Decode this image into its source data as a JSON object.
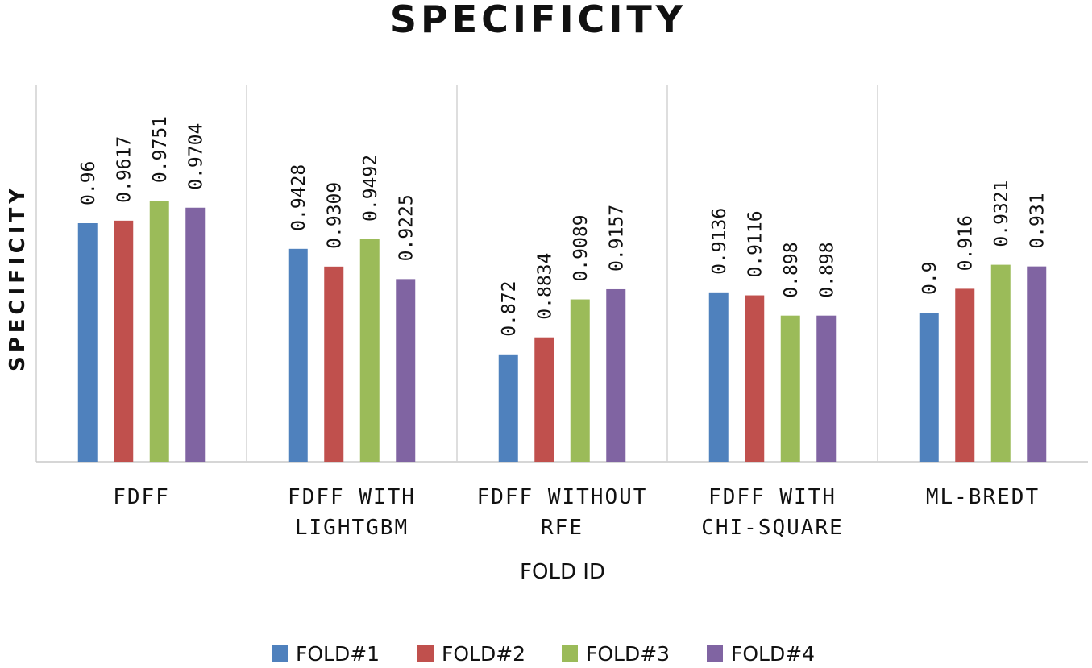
{
  "chart_data": {
    "type": "bar",
    "title": "SPECIFICITY",
    "ylabel": "SPECIFICITY",
    "xlabel": "FOLD ID",
    "categories": [
      [
        "FDFF"
      ],
      [
        "FDFF WITH",
        "LIGHTGBM"
      ],
      [
        "FDFF WITHOUT",
        "RFE"
      ],
      [
        "FDFF WITH",
        "CHI-SQUARE"
      ],
      [
        "ML-BREDT"
      ]
    ],
    "series": [
      {
        "name": "FOLD#1",
        "color": "#4F81BD",
        "values": [
          0.96,
          0.9428,
          0.872,
          0.9136,
          0.9
        ],
        "labels": [
          "0.96",
          "0.9428",
          "0.872",
          "0.9136",
          "0.9"
        ]
      },
      {
        "name": "FOLD#2",
        "color": "#C0504D",
        "values": [
          0.9617,
          0.9309,
          0.8834,
          0.9116,
          0.916
        ],
        "labels": [
          "0.9617",
          "0.9309",
          "0.8834",
          "0.9116",
          "0.916"
        ]
      },
      {
        "name": "FOLD#3",
        "color": "#9BBB59",
        "values": [
          0.9751,
          0.9492,
          0.9089,
          0.898,
          0.9321
        ],
        "labels": [
          "0.9751",
          "0.9492",
          "0.9089",
          "0.898",
          "0.9321"
        ]
      },
      {
        "name": "FOLD#4",
        "color": "#8064A2",
        "values": [
          0.9704,
          0.9225,
          0.9157,
          0.898,
          0.931
        ],
        "labels": [
          "0.9704",
          "0.9225",
          "0.9157",
          "0.898",
          "0.931"
        ]
      }
    ],
    "ylim": [
      0.8,
      0.99
    ],
    "legend": "bottom",
    "grid": false,
    "category_separators": true
  }
}
